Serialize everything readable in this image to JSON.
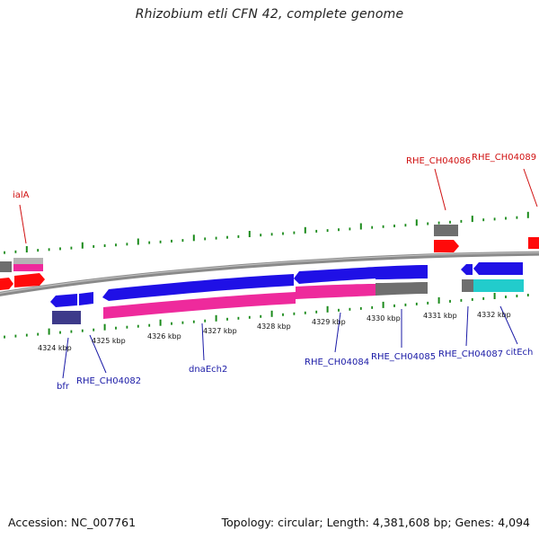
{
  "title": "Rhizobium etli CFN 42, complete genome",
  "accession": "Accession: NC_007761",
  "topology": "Topology: circular; Length: 4,381,608 bp; Genes: 4,094",
  "colors": {
    "backbone": "#8a8a8a",
    "cds": "#1f10e6",
    "rna_red": "#ff0a0a",
    "gray_feature": "#6e6e6e",
    "pink": "#ee2a9c",
    "navy": "#3d3a8a",
    "cyan": "#22cccc",
    "tick": "#1a8a1a",
    "label_blue": "#1a1aa6",
    "label_red": "#d01010"
  },
  "scale_labels": [
    "4324 kbp",
    "4325 kbp",
    "4326 kbp",
    "4327 kbp",
    "4328 kbp",
    "4329 kbp",
    "4330 kbp",
    "4331 kbp",
    "4332 kbp"
  ],
  "gene_labels": {
    "ialA": "ialA",
    "RHE_CH04086": "RHE_CH04086",
    "RHE_CH04089": "RHE_CH04089",
    "bfr": "bfr",
    "RHE_CH04082": "RHE_CH04082",
    "dnaEch2": "dnaEch2",
    "RHE_CH04084": "RHE_CH04084",
    "RHE_CH04085": "RHE_CH04085",
    "RHE_CH04087": "RHE_CH04087",
    "citEch": "citEch"
  }
}
